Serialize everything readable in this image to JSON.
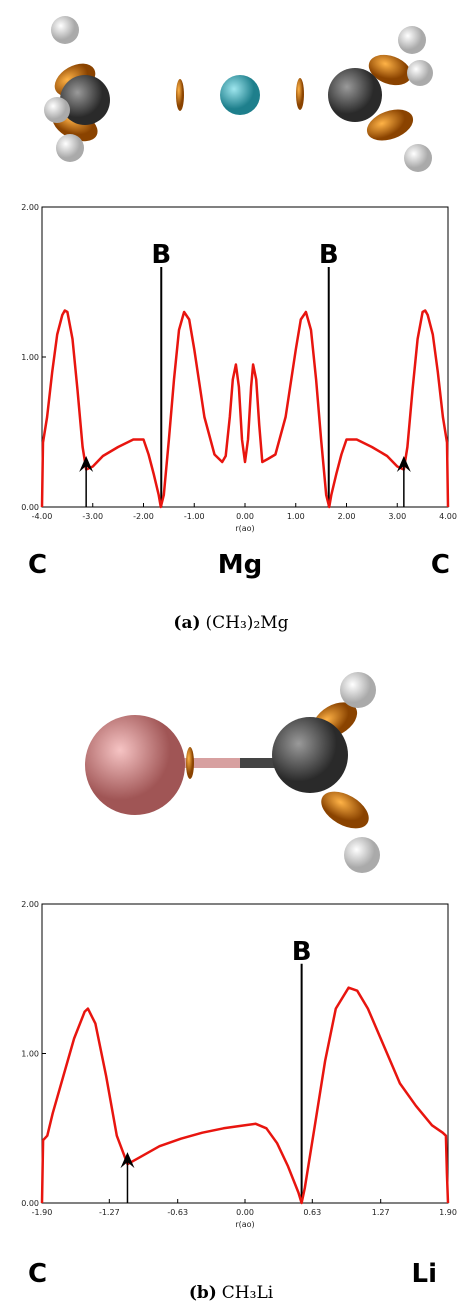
{
  "chart_data": [
    {
      "type": "line",
      "xlabel": "r(ao)",
      "xlim": [
        -4,
        4
      ],
      "xticks": [
        {
          "value": -4,
          "label": "-4.00"
        },
        {
          "value": -3,
          "label": "-3.00"
        },
        {
          "value": -2,
          "label": "-2.00"
        },
        {
          "value": -1,
          "label": "-1.00"
        },
        {
          "value": 0,
          "label": "0.00"
        },
        {
          "value": 1,
          "label": "1.00"
        },
        {
          "value": 2,
          "label": "2.00"
        },
        {
          "value": 3,
          "label": "3.00"
        },
        {
          "value": 4,
          "label": "4.00"
        }
      ],
      "ylim": [
        0,
        2
      ],
      "yticks": [
        {
          "value": 0,
          "label": "0.00"
        },
        {
          "value": 1,
          "label": "1.00"
        },
        {
          "value": 2,
          "label": "2.00"
        }
      ],
      "x": [
        -4,
        -3.98,
        -3.9,
        -3.8,
        -3.7,
        -3.6,
        -3.55,
        -3.5,
        -3.4,
        -3.3,
        -3.2,
        -3.13,
        -3.0,
        -2.8,
        -2.5,
        -2.2,
        -2.0,
        -1.9,
        -1.8,
        -1.7,
        -1.66,
        -1.6,
        -1.5,
        -1.4,
        -1.3,
        -1.2,
        -1.1,
        -1.0,
        -0.8,
        -0.6,
        -0.45,
        -0.38,
        -0.3,
        -0.24,
        -0.18,
        -0.12,
        -0.06,
        0,
        0.06,
        0.12,
        0.16,
        0.22,
        0.28,
        0.34,
        0.45,
        0.6,
        0.8,
        1.0,
        1.1,
        1.2,
        1.3,
        1.4,
        1.5,
        1.6,
        1.66,
        1.7,
        1.8,
        1.9,
        2.0,
        2.2,
        2.5,
        2.8,
        3.0,
        3.13,
        3.2,
        3.3,
        3.4,
        3.5,
        3.55,
        3.6,
        3.7,
        3.8,
        3.9,
        3.98,
        4
      ],
      "series": [
        {
          "color": "#e8150f",
          "values": [
            0,
            0.43,
            0.6,
            0.9,
            1.15,
            1.28,
            1.31,
            1.3,
            1.12,
            0.78,
            0.4,
            0.25,
            0.27,
            0.34,
            0.4,
            0.45,
            0.45,
            0.35,
            0.22,
            0.08,
            0,
            0.08,
            0.45,
            0.85,
            1.18,
            1.3,
            1.25,
            1.05,
            0.6,
            0.35,
            0.3,
            0.34,
            0.6,
            0.85,
            0.95,
            0.8,
            0.45,
            0.3,
            0.45,
            0.8,
            0.95,
            0.85,
            0.55,
            0.3,
            0.32,
            0.35,
            0.6,
            1.05,
            1.25,
            1.3,
            1.18,
            0.85,
            0.45,
            0.08,
            0,
            0.08,
            0.22,
            0.35,
            0.45,
            0.45,
            0.4,
            0.34,
            0.27,
            0.25,
            0.4,
            0.78,
            1.12,
            1.3,
            1.31,
            1.28,
            1.15,
            0.9,
            0.6,
            0.43,
            0
          ]
        }
      ],
      "vlines": [
        {
          "x": -1.65,
          "label": "B"
        },
        {
          "x": 1.65,
          "label": "B"
        }
      ],
      "arrows_x": [
        -3.13,
        3.13
      ]
    },
    {
      "type": "line",
      "xlabel": "r(ao)",
      "xlim": [
        -1.9,
        1.9
      ],
      "xticks": [
        {
          "value": -1.9,
          "label": "-1.90"
        },
        {
          "value": -1.27,
          "label": "-1.27"
        },
        {
          "value": -0.63,
          "label": "-0.63"
        },
        {
          "value": 0,
          "label": "0.00"
        },
        {
          "value": 0.63,
          "label": "0.63"
        },
        {
          "value": 1.27,
          "label": "1.27"
        },
        {
          "value": 1.9,
          "label": "1.90"
        }
      ],
      "ylim": [
        0,
        2
      ],
      "yticks": [
        {
          "value": 0,
          "label": "0.00"
        },
        {
          "value": 1,
          "label": "1.00"
        },
        {
          "value": 2,
          "label": "2.00"
        }
      ],
      "x": [
        -1.9,
        -1.89,
        -1.85,
        -1.8,
        -1.7,
        -1.6,
        -1.5,
        -1.47,
        -1.4,
        -1.3,
        -1.2,
        -1.1,
        -1.0,
        -0.8,
        -0.6,
        -0.4,
        -0.2,
        0,
        0.1,
        0.2,
        0.3,
        0.4,
        0.5,
        0.53,
        0.56,
        0.65,
        0.75,
        0.85,
        0.97,
        1.05,
        1.15,
        1.3,
        1.45,
        1.6,
        1.75,
        1.85,
        1.88,
        1.89,
        1.9
      ],
      "series": [
        {
          "color": "#e8150f",
          "values": [
            0,
            0.42,
            0.45,
            0.6,
            0.85,
            1.1,
            1.28,
            1.3,
            1.2,
            0.85,
            0.45,
            0.26,
            0.3,
            0.38,
            0.43,
            0.47,
            0.5,
            0.52,
            0.53,
            0.5,
            0.4,
            0.25,
            0.07,
            0,
            0.1,
            0.5,
            0.95,
            1.3,
            1.44,
            1.42,
            1.3,
            1.05,
            0.8,
            0.65,
            0.52,
            0.47,
            0.45,
            0.2,
            0
          ]
        }
      ],
      "vlines": [
        {
          "x": 0.53,
          "label": "B"
        }
      ],
      "arrows_x": [
        -1.1
      ]
    }
  ],
  "atom_labels": [
    [
      "C",
      "Mg",
      "C"
    ],
    [
      "C",
      "Li"
    ]
  ],
  "captions": [
    {
      "tag": "(a)",
      "formula": "(CH₃)₂Mg"
    },
    {
      "tag": "(b)",
      "formula": "CH₃Li"
    }
  ]
}
